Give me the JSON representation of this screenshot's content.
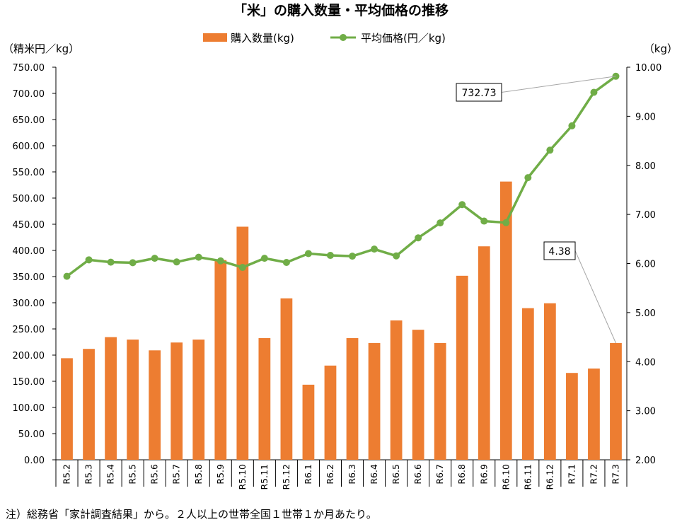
{
  "colors": {
    "bar": "#ed7d31",
    "line": "#70ad47",
    "axis": "#000000",
    "leader": "#a6a6a6"
  },
  "chart_data": {
    "type": "bar",
    "title": "「米」の購入数量・平均価格の推移",
    "categories": [
      "R5.2",
      "R5.3",
      "R5.4",
      "R5.5",
      "R5.6",
      "R5.7",
      "R5.8",
      "R5.9",
      "R5.10",
      "R5.11",
      "R5.12",
      "R6.1",
      "R6.2",
      "R6.3",
      "R6.4",
      "R6.5",
      "R6.6",
      "R6.7",
      "R6.8",
      "R6.9",
      "R6.10",
      "R6.11",
      "R6.12",
      "R7.1",
      "R7.2",
      "R7.3"
    ],
    "series": [
      {
        "name": "購入数量(kg)",
        "type": "bar",
        "axis": "right",
        "values": [
          4.07,
          4.26,
          4.5,
          4.45,
          4.23,
          4.39,
          4.45,
          6.07,
          6.75,
          4.48,
          5.29,
          3.53,
          3.92,
          4.48,
          4.38,
          4.84,
          4.65,
          4.38,
          5.75,
          6.35,
          7.67,
          5.09,
          5.19,
          3.77,
          3.86,
          4.38
        ]
      },
      {
        "name": "平均価格(円／kg)",
        "type": "line",
        "axis": "left",
        "values": [
          350.5,
          382.0,
          377.5,
          376.5,
          385.0,
          378.0,
          387.0,
          380.0,
          367.5,
          385.0,
          377.0,
          394.0,
          390.5,
          389.0,
          402.5,
          389.5,
          424.0,
          452.5,
          487.5,
          456.0,
          453.0,
          539.0,
          591.5,
          638.0,
          702.0,
          732.73
        ]
      }
    ],
    "y_left": {
      "label": "（精米円／kg）",
      "min": 0,
      "max": 750,
      "step": 50,
      "ticks": [
        "0.00",
        "50.00",
        "100.00",
        "150.00",
        "200.00",
        "250.00",
        "300.00",
        "350.00",
        "400.00",
        "450.00",
        "500.00",
        "550.00",
        "600.00",
        "650.00",
        "700.00",
        "750.00"
      ]
    },
    "y_right": {
      "label": "（kg）",
      "min": 2,
      "max": 10,
      "step": 1,
      "ticks": [
        "2.00",
        "3.00",
        "4.00",
        "5.00",
        "6.00",
        "7.00",
        "8.00",
        "9.00",
        "10.00"
      ]
    },
    "callouts": [
      {
        "text": "732.73",
        "series": 1,
        "index": 25
      },
      {
        "text": "4.38",
        "series": 0,
        "index": 25
      }
    ],
    "legend_position": "top-center"
  },
  "note": "注）総務省「家計調査結果」から。２人以上の世帯全国１世帯１か月あたり。"
}
